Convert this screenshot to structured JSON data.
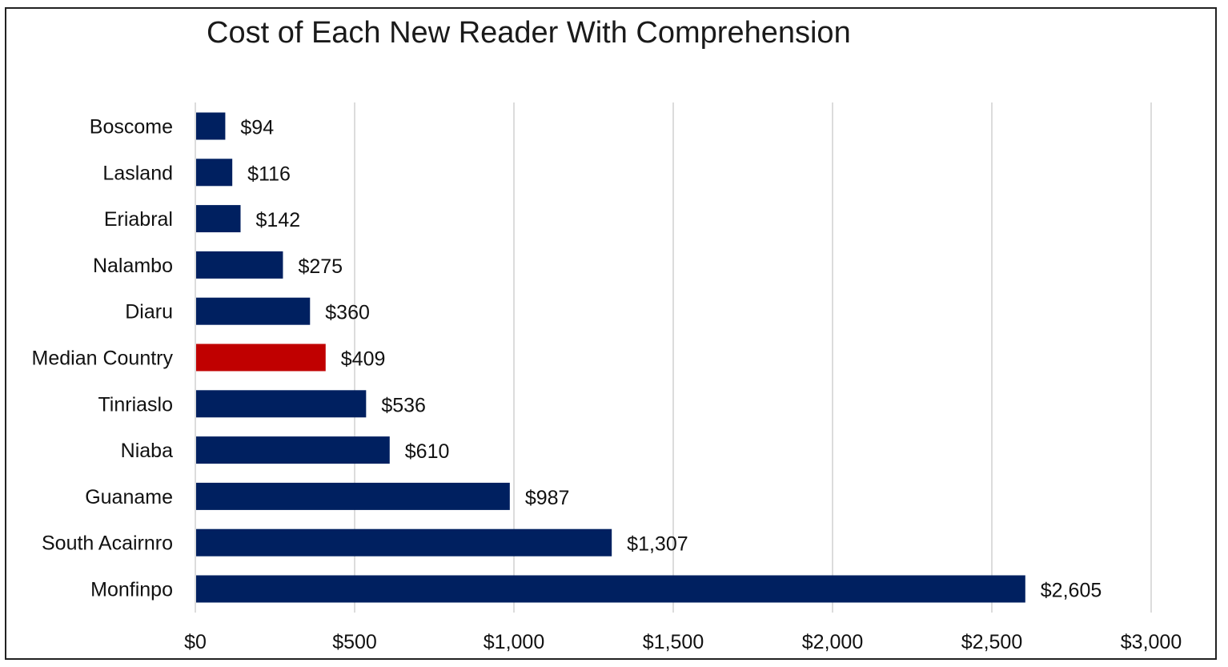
{
  "chart_data": {
    "type": "bar",
    "orientation": "horizontal",
    "title": "Cost of Each New Reader With Comprehension",
    "xlabel": "",
    "ylabel": "",
    "categories": [
      "Boscome",
      "Lasland",
      "Eriabral",
      "Nalambo",
      "Diaru",
      "Median Country",
      "Tinriaslo",
      "Niaba",
      "Guaname",
      "South Acairnro",
      "Monfinpo"
    ],
    "values": [
      94,
      116,
      142,
      275,
      360,
      409,
      536,
      610,
      987,
      1307,
      2605
    ],
    "data_labels": [
      "$94",
      "$116",
      "$142",
      "$275",
      "$360",
      "$409",
      "$536",
      "$610",
      "$987",
      "$1,307",
      "$2,605"
    ],
    "highlight_category": "Median Country",
    "xlim": [
      0,
      3000
    ],
    "x_ticks": [
      0,
      500,
      1000,
      1500,
      2000,
      2500,
      3000
    ],
    "x_tick_labels": [
      "$0",
      "$500",
      "$1,000",
      "$1,500",
      "$2,000",
      "$2,500",
      "$3,000"
    ],
    "grid": "vertical",
    "legend": "none",
    "colors": {
      "bar": "#002060",
      "highlight": "#C00000",
      "grid": "#d0d0d0"
    }
  }
}
